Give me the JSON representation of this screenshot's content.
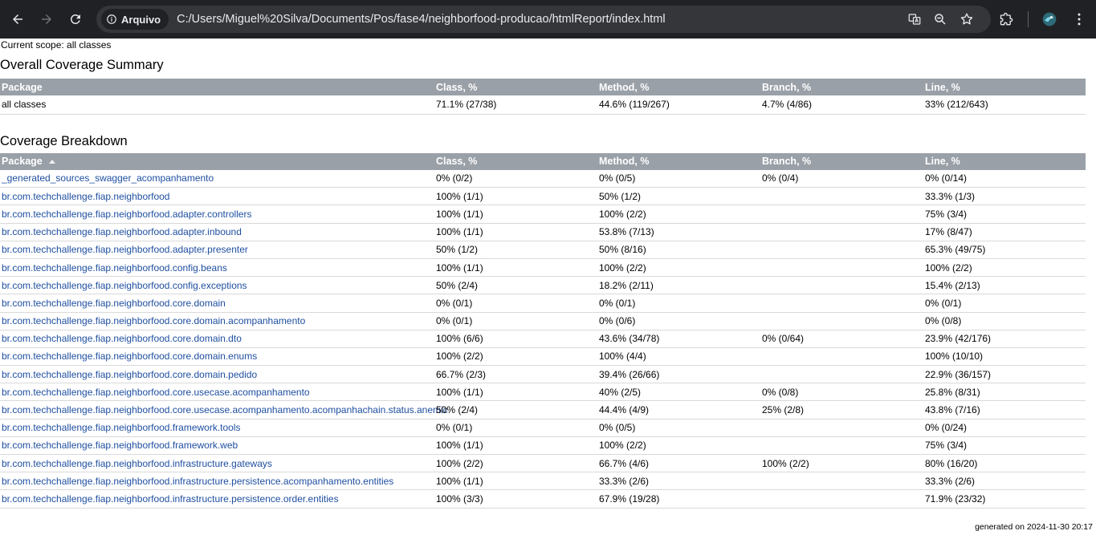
{
  "browser": {
    "site_chip_label": "Arquivo",
    "url": "C:/Users/Miguel%20Silva/Documents/Pos/fase4/neighborfood-producao/htmlReport/index.html"
  },
  "report": {
    "scope": "Current scope: all classes",
    "summary_title": "Overall Coverage Summary",
    "breakdown_title": "Coverage Breakdown",
    "columns": [
      "Package",
      "Class, %",
      "Method, %",
      "Branch, %",
      "Line, %"
    ],
    "summary_row": {
      "package": "all classes",
      "class": "71.1% (27/38)",
      "method": "44.6% (119/267)",
      "branch": "4.7% (4/86)",
      "line": "33% (212/643)"
    },
    "rows": [
      {
        "package": "_generated_sources_swagger_acompanhamento",
        "class": "0% (0/2)",
        "method": "0% (0/5)",
        "branch": "0% (0/4)",
        "line": "0% (0/14)"
      },
      {
        "package": "br.com.techchallenge.fiap.neighborfood",
        "class": "100% (1/1)",
        "method": "50% (1/2)",
        "branch": "",
        "line": "33.3% (1/3)"
      },
      {
        "package": "br.com.techchallenge.fiap.neighborfood.adapter.controllers",
        "class": "100% (1/1)",
        "method": "100% (2/2)",
        "branch": "",
        "line": "75% (3/4)"
      },
      {
        "package": "br.com.techchallenge.fiap.neighborfood.adapter.inbound",
        "class": "100% (1/1)",
        "method": "53.8% (7/13)",
        "branch": "",
        "line": "17% (8/47)"
      },
      {
        "package": "br.com.techchallenge.fiap.neighborfood.adapter.presenter",
        "class": "50% (1/2)",
        "method": "50% (8/16)",
        "branch": "",
        "line": "65.3% (49/75)"
      },
      {
        "package": "br.com.techchallenge.fiap.neighborfood.config.beans",
        "class": "100% (1/1)",
        "method": "100% (2/2)",
        "branch": "",
        "line": "100% (2/2)"
      },
      {
        "package": "br.com.techchallenge.fiap.neighborfood.config.exceptions",
        "class": "50% (2/4)",
        "method": "18.2% (2/11)",
        "branch": "",
        "line": "15.4% (2/13)"
      },
      {
        "package": "br.com.techchallenge.fiap.neighborfood.core.domain",
        "class": "0% (0/1)",
        "method": "0% (0/1)",
        "branch": "",
        "line": "0% (0/1)"
      },
      {
        "package": "br.com.techchallenge.fiap.neighborfood.core.domain.acompanhamento",
        "class": "0% (0/1)",
        "method": "0% (0/6)",
        "branch": "",
        "line": "0% (0/8)"
      },
      {
        "package": "br.com.techchallenge.fiap.neighborfood.core.domain.dto",
        "class": "100% (6/6)",
        "method": "43.6% (34/78)",
        "branch": "0% (0/64)",
        "line": "23.9% (42/176)"
      },
      {
        "package": "br.com.techchallenge.fiap.neighborfood.core.domain.enums",
        "class": "100% (2/2)",
        "method": "100% (4/4)",
        "branch": "",
        "line": "100% (10/10)"
      },
      {
        "package": "br.com.techchallenge.fiap.neighborfood.core.domain.pedido",
        "class": "66.7% (2/3)",
        "method": "39.4% (26/66)",
        "branch": "",
        "line": "22.9% (36/157)"
      },
      {
        "package": "br.com.techchallenge.fiap.neighborfood.core.usecase.acompanhamento",
        "class": "100% (1/1)",
        "method": "40% (2/5)",
        "branch": "0% (0/8)",
        "line": "25.8% (8/31)"
      },
      {
        "package": "br.com.techchallenge.fiap.neighborfood.core.usecase.acompanhamento.acompanhachain.status.anemic",
        "class": "50% (2/4)",
        "method": "44.4% (4/9)",
        "branch": "25% (2/8)",
        "line": "43.8% (7/16)"
      },
      {
        "package": "br.com.techchallenge.fiap.neighborfood.framework.tools",
        "class": "0% (0/1)",
        "method": "0% (0/5)",
        "branch": "",
        "line": "0% (0/24)"
      },
      {
        "package": "br.com.techchallenge.fiap.neighborfood.framework.web",
        "class": "100% (1/1)",
        "method": "100% (2/2)",
        "branch": "",
        "line": "75% (3/4)"
      },
      {
        "package": "br.com.techchallenge.fiap.neighborfood.infrastructure.gateways",
        "class": "100% (2/2)",
        "method": "66.7% (4/6)",
        "branch": "100% (2/2)",
        "line": "80% (16/20)"
      },
      {
        "package": "br.com.techchallenge.fiap.neighborfood.infrastructure.persistence.acompanhamento.entities",
        "class": "100% (1/1)",
        "method": "33.3% (2/6)",
        "branch": "",
        "line": "33.3% (2/6)"
      },
      {
        "package": "br.com.techchallenge.fiap.neighborfood.infrastructure.persistence.order.entities",
        "class": "100% (3/3)",
        "method": "67.9% (19/28)",
        "branch": "",
        "line": "71.9% (23/32)"
      }
    ],
    "footer": "generated on 2024-11-30 20:17"
  }
}
